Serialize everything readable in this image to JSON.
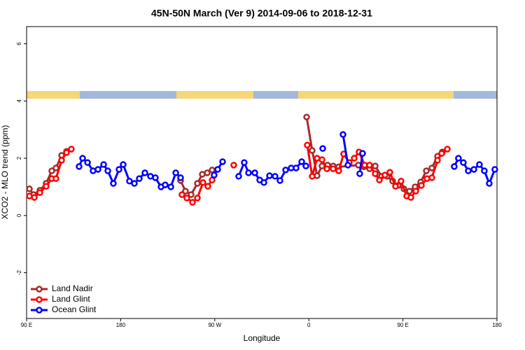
{
  "chart_data": {
    "type": "line",
    "title": "45N-50N March (Ver 9)   2014-09-06 to 2018-12-31",
    "x_label": "Longitude",
    "y_label": "XCO2 - MLO trend (ppm)",
    "xlim": [
      90,
      540
    ],
    "xticks": [
      {
        "value": 90,
        "label": "90 E"
      },
      180,
      {
        "value": 270,
        "label": "90 W"
      },
      {
        "value": 360,
        "label": "0"
      },
      {
        "value": 450,
        "label": "90 E"
      },
      {
        "value": 540,
        "label": "180"
      }
    ],
    "ylim": [
      -3.6,
      6.6
    ],
    "yticks": [
      -2,
      0,
      2,
      4,
      6
    ],
    "legend": "bottom-left",
    "series": [
      {
        "name": "Land Nadir",
        "color": "#a52a2a",
        "x": [
          92.7,
          96.7,
          102.7,
          108.7,
          114.1,
          118.1,
          123.5,
          128.2,
          null,
          237.3,
          242,
          247.4,
          253.4,
          258.1,
          262.8,
          267.5,
          null,
          357.9,
          363.2,
          367.9,
          372.6,
          378,
          383.3,
          388.6,
          407.4,
          412.7,
          418.1,
          423.5,
          429.5,
          434.8,
          440.2,
          445.5,
          450.9,
          456.3,
          461.6,
          467,
          472.4,
          477.7,
          483.1,
          487.7
        ],
        "values": [
          0.93,
          0.73,
          0.88,
          1.12,
          1.56,
          1.66,
          2.1,
          2.24,
          null,
          1.22,
          0.85,
          0.73,
          1.12,
          1.44,
          1.49,
          1.59,
          null,
          3.44,
          2.27,
          1.39,
          1.73,
          1.76,
          1.73,
          1.7,
          1.76,
          1.7,
          1.63,
          1.73,
          1.37,
          1.37,
          1.2,
          1.05,
          0.93,
          0.85,
          1.0,
          1.17,
          1.56,
          1.66,
          2.07,
          2.22
        ]
      },
      {
        "name": "Land Glint",
        "color": "#ff0000",
        "x": [
          92.7,
          97.4,
          102.7,
          108.7,
          114.1,
          118.1,
          123.5,
          128.2,
          132.8,
          null,
          238.6,
          243.3,
          248.7,
          253.4,
          258.7,
          263.4,
          267.5,
          null,
          288.2,
          null,
          358.5,
          363.2,
          367.9,
          372.6,
          377.3,
          383.3,
          388.6,
          393.3,
          398.7,
          403.4,
          408,
          413.4,
          418.1,
          423.5,
          427.5,
          432.8,
          437.5,
          442.9,
          448.2,
          453.6,
          457.6,
          462.3,
          467.7,
          473,
          477.7,
          483.1,
          487.1,
          492.5
        ],
        "values": [
          0.68,
          0.63,
          0.8,
          1.02,
          1.29,
          1.29,
          1.93,
          2.2,
          2.32,
          null,
          0.73,
          0.61,
          0.46,
          0.61,
          1.15,
          1.02,
          1.24,
          null,
          1.76,
          null,
          2.46,
          1.37,
          2.0,
          1.95,
          1.63,
          1.63,
          1.56,
          2.15,
          1.85,
          2.0,
          2.22,
          1.76,
          1.76,
          1.46,
          1.24,
          1.41,
          1.51,
          1.02,
          1.2,
          0.68,
          0.63,
          0.85,
          1.05,
          1.29,
          1.32,
          1.93,
          2.17,
          2.32
        ]
      },
      {
        "name": "Ocean Glint",
        "color": "#0000ff",
        "x": [
          140.2,
          143.6,
          148.3,
          153.6,
          158.3,
          163.7,
          167.7,
          173,
          178.4,
          182.4,
          188.4,
          193.1,
          197.8,
          203.2,
          208.5,
          213.2,
          218.6,
          222.6,
          228,
          232.7,
          237.3,
          null,
          269.4,
          272.8,
          277.5,
          null,
          292.9,
          298.2,
          302.3,
          308.3,
          313,
          317,
          322.4,
          327.7,
          332.4,
          337.8,
          343.1,
          347.8,
          353.2,
          357.2,
          null,
          373.3,
          null,
          392.7,
          397.4,
          null,
          408.7,
          411.4,
          null,
          499.1,
          503.1,
          507.8,
          512.5,
          517.9,
          523.2,
          527.9,
          532.6,
          537.9
        ],
        "values": [
          1.71,
          2.0,
          1.85,
          1.56,
          1.61,
          1.78,
          1.56,
          1.12,
          1.61,
          1.78,
          1.2,
          1.12,
          1.29,
          1.49,
          1.37,
          1.32,
          1.0,
          1.07,
          1.0,
          1.49,
          1.32,
          null,
          1.41,
          1.61,
          1.88,
          null,
          1.37,
          1.85,
          1.49,
          1.49,
          1.24,
          1.15,
          1.39,
          1.37,
          1.22,
          1.59,
          1.66,
          1.66,
          1.88,
          1.73,
          null,
          2.34,
          null,
          2.83,
          1.76,
          null,
          1.46,
          2.17,
          null,
          1.71,
          2.0,
          1.85,
          1.56,
          1.61,
          1.78,
          1.56,
          1.12,
          1.61
        ]
      }
    ]
  }
}
